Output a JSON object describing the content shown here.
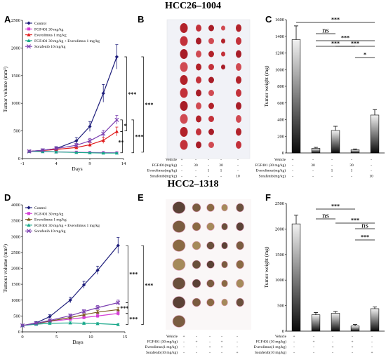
{
  "figure": {
    "title_top": "HCC26–1004",
    "title_bottom": "HCC2–1318",
    "panels": [
      "A",
      "B",
      "C",
      "D",
      "E",
      "F"
    ]
  },
  "treatment_rows_top": [
    "Vehicle",
    "FGF401(mg/kg)",
    "Everolimus(mg/kg)",
    "Sorafenib(mg/kg)"
  ],
  "treatment_rows_c": [
    "Vehicle",
    "FGF401 (30 mg/kg)",
    "Everolimus(mg/kg)",
    "Sorafenib(mg/kg)"
  ],
  "treatment_rows_e": [
    "Vehicle",
    "FGF401 (30 mg/kg)",
    "Everolimus(1 mg/kg)",
    "Sorafenib(10 mg/kg)"
  ],
  "treatment_rows_f": [
    "Vehicle",
    "FGF401 (30 mg/kg)",
    "Everolimus(1 mg/kg)",
    "Sorafenib(10 mg/kg)"
  ],
  "treatment_matrix_top": [
    [
      "+",
      "-",
      "-",
      "-",
      "-"
    ],
    [
      "-",
      "30",
      "-",
      "30",
      "-"
    ],
    [
      "-",
      "-",
      "1",
      "1",
      "-"
    ],
    [
      "-",
      "-",
      "-",
      "-",
      "10"
    ]
  ],
  "treatment_matrix_bottom": [
    [
      "+",
      "-",
      "-",
      "-",
      "-"
    ],
    [
      "-",
      "+",
      "-",
      "+",
      "-"
    ],
    [
      "-",
      "-",
      "+",
      "+",
      "-"
    ],
    [
      "-",
      "-",
      "-",
      "-",
      "+"
    ]
  ],
  "chart_data": [
    {
      "panel": "A",
      "type": "line",
      "xlabel": "Days",
      "ylabel": "Tumor volume (mm³)",
      "xlim": [
        -1,
        14
      ],
      "ylim": [
        0,
        2500
      ],
      "xticks": [
        -1,
        4,
        9,
        14
      ],
      "xtick_labels": [
        "-1",
        "4",
        "9",
        "14"
      ],
      "yticks": [
        0,
        500,
        1000,
        1500,
        2000,
        2500
      ],
      "x": [
        0,
        2,
        4,
        7,
        9,
        11,
        13
      ],
      "series": [
        {
          "name": "Control",
          "color": "#1c1c7a",
          "marker": "diamond",
          "values": [
            130,
            150,
            180,
            320,
            580,
            1180,
            1840
          ],
          "errors": [
            20,
            25,
            35,
            60,
            90,
            160,
            220
          ]
        },
        {
          "name": "FGF401 30 mg/kg",
          "color": "#d63fd6",
          "marker": "square",
          "values": [
            130,
            130,
            120,
            115,
            110,
            108,
            105
          ],
          "errors": [
            10,
            10,
            10,
            10,
            10,
            10,
            10
          ]
        },
        {
          "name": "Everolimus 1 mg/kg",
          "color": "#e01b1b",
          "marker": "triangle",
          "values": [
            130,
            145,
            165,
            200,
            250,
            330,
            490
          ],
          "errors": [
            15,
            18,
            22,
            30,
            40,
            55,
            80
          ]
        },
        {
          "name": "FGF401 30 mg/kg + Everolimus 1 mg/kg",
          "color": "#18a88a",
          "marker": "triangle",
          "values": [
            130,
            125,
            120,
            110,
            105,
            100,
            100
          ],
          "errors": [
            10,
            10,
            10,
            10,
            10,
            10,
            10
          ]
        },
        {
          "name": "Sorafenib 10 mg/kg",
          "color": "#7b3fb0",
          "marker": "x",
          "values": [
            130,
            150,
            180,
            240,
            320,
            450,
            700
          ],
          "errors": [
            15,
            20,
            25,
            35,
            45,
            60,
            80
          ]
        }
      ],
      "annotations": [
        "***",
        "***",
        "*",
        "***",
        "**"
      ]
    },
    {
      "panel": "C",
      "type": "bar",
      "ylabel": "Tumor weight (mg)",
      "ylim": [
        0,
        1600
      ],
      "yticks": [
        0,
        200,
        400,
        600,
        800,
        1000,
        1200,
        1400,
        1600
      ],
      "values": [
        1360,
        55,
        270,
        38,
        455
      ],
      "errors": [
        165,
        12,
        50,
        10,
        65
      ],
      "annotations": [
        "***",
        "ns",
        "***",
        "***",
        "***",
        "*"
      ]
    },
    {
      "panel": "D",
      "type": "line",
      "xlabel": "Days",
      "ylabel": "Tumour volume (mm³)",
      "xlim": [
        0,
        15
      ],
      "ylim": [
        0,
        4000
      ],
      "xticks": [
        0,
        5,
        10,
        15
      ],
      "xtick_labels": [
        "0",
        "5",
        "10",
        "15"
      ],
      "yticks": [
        0,
        500,
        1000,
        1500,
        2000,
        2500,
        3000,
        3500,
        4000
      ],
      "x": [
        0,
        2,
        4,
        7,
        9,
        11,
        14
      ],
      "series": [
        {
          "name": "Control",
          "color": "#1c1c7a",
          "marker": "diamond",
          "values": [
            200,
            280,
            480,
            1000,
            1480,
            1940,
            2720
          ],
          "errors": [
            25,
            40,
            60,
            90,
            110,
            130,
            250
          ]
        },
        {
          "name": "FGF401 30 mg/kg",
          "color": "#d63fd6",
          "marker": "square",
          "values": [
            200,
            260,
            330,
            400,
            450,
            500,
            580
          ],
          "errors": [
            25,
            30,
            40,
            45,
            50,
            55,
            65
          ]
        },
        {
          "name": "Everolimus 1 mg/kg",
          "color": "#7a5a1e",
          "marker": "triangle",
          "values": [
            200,
            260,
            340,
            450,
            540,
            620,
            700
          ],
          "errors": [
            25,
            30,
            40,
            50,
            55,
            60,
            70
          ]
        },
        {
          "name": "FGF401 30 mg/kg + Everolimus 1 mg/kg",
          "color": "#18a88a",
          "marker": "triangle",
          "values": [
            200,
            240,
            270,
            280,
            270,
            260,
            230
          ],
          "errors": [
            20,
            25,
            30,
            35,
            35,
            30,
            30
          ]
        },
        {
          "name": "Sorafenib 10 mg/kg",
          "color": "#7b3fb0",
          "marker": "x",
          "values": [
            200,
            270,
            360,
            510,
            640,
            760,
            920
          ],
          "errors": [
            25,
            30,
            40,
            50,
            60,
            70,
            80
          ]
        }
      ],
      "annotations": [
        "***",
        "***",
        "***",
        "***"
      ]
    },
    {
      "panel": "F",
      "type": "bar",
      "ylabel": "Tumor weight (mg)",
      "ylim": [
        0,
        2500
      ],
      "yticks": [
        0,
        500,
        1000,
        1500,
        2000,
        2500
      ],
      "values": [
        2100,
        320,
        350,
        100,
        440
      ],
      "errors": [
        170,
        45,
        35,
        30,
        35
      ],
      "annotations": [
        "***",
        "ns",
        "***",
        "ns",
        "***"
      ]
    }
  ]
}
